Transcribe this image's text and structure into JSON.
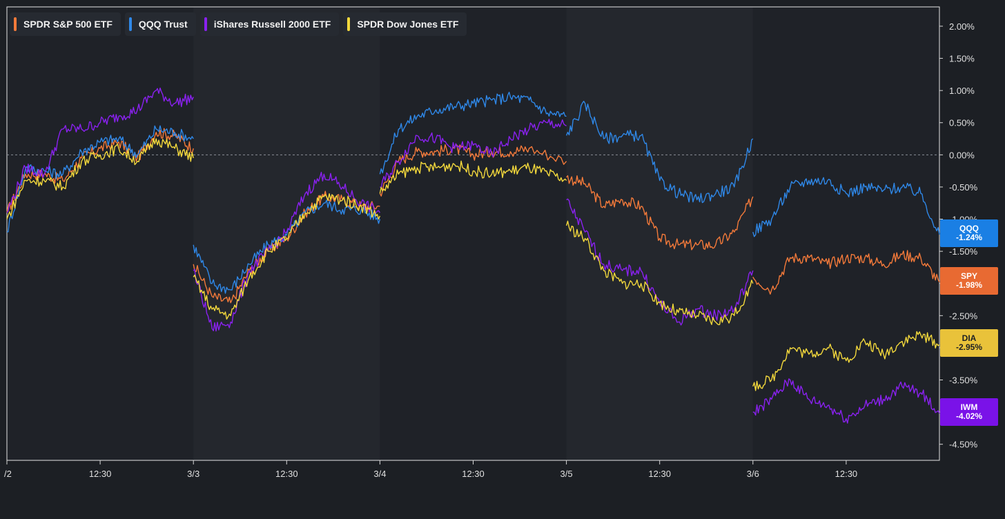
{
  "legend": [
    {
      "label": "SPDR S&P 500 ETF",
      "color": "#f47a3a"
    },
    {
      "label": "QQQ Trust",
      "color": "#2f88e8"
    },
    {
      "label": "iShares Russell 2000 ETF",
      "color": "#8a21f0"
    },
    {
      "label": "SPDR Dow Jones ETF",
      "color": "#f4d93c"
    }
  ],
  "tags": [
    {
      "ticker": "QQQ",
      "value": "-1.24%",
      "color": "#1a7fe4",
      "percent": -1.24
    },
    {
      "ticker": "SPY",
      "value": "-1.98%",
      "color": "#e86a32",
      "percent": -1.98
    },
    {
      "ticker": "DIA",
      "value": "-2.95%",
      "color": "#e9c23a",
      "percent": -2.95
    },
    {
      "ticker": "IWM",
      "value": "-4.02%",
      "color": "#7a12e8",
      "percent": -4.02
    }
  ],
  "chart_data": {
    "type": "line",
    "x_tick_labels": [
      "/2",
      "12:30",
      "3/3",
      "12:30",
      "3/4",
      "12:30",
      "3/5",
      "12:30",
      "3/6",
      "12:30"
    ],
    "y_tick_labels": [
      "2.00%",
      "1.50%",
      "1.00%",
      "0.50%",
      "0.00%",
      "-0.50%",
      "-1.00%",
      "-1.50%",
      "-2.00%",
      "-2.50%",
      "-3.00%",
      "-3.50%",
      "-4.00%",
      "-4.50%"
    ],
    "ylim": [
      -4.75,
      2.3
    ],
    "grid": false,
    "zero_line": true,
    "legend_position": "top-left",
    "x_range": [
      0,
      5.0
    ],
    "series": [
      {
        "name": "SPDR S&P 500 ETF",
        "color": "#f47a3a",
        "points": [
          [
            0.0,
            -0.9
          ],
          [
            0.1,
            -0.3
          ],
          [
            0.2,
            -0.3
          ],
          [
            0.3,
            -0.4
          ],
          [
            0.4,
            -0.05
          ],
          [
            0.5,
            0.1
          ],
          [
            0.6,
            0.2
          ],
          [
            0.7,
            -0.05
          ],
          [
            0.8,
            0.35
          ],
          [
            0.9,
            0.3
          ],
          [
            1.0,
            0.1
          ],
          [
            1.0,
            -1.7
          ],
          [
            1.1,
            -2.2
          ],
          [
            1.2,
            -2.3
          ],
          [
            1.3,
            -1.8
          ],
          [
            1.4,
            -1.5
          ],
          [
            1.5,
            -1.3
          ],
          [
            1.6,
            -0.9
          ],
          [
            1.7,
            -0.65
          ],
          [
            1.8,
            -0.7
          ],
          [
            1.9,
            -0.8
          ],
          [
            2.0,
            -0.8
          ],
          [
            2.0,
            -0.6
          ],
          [
            2.1,
            -0.1
          ],
          [
            2.2,
            0.05
          ],
          [
            2.3,
            0.05
          ],
          [
            2.4,
            0.1
          ],
          [
            2.5,
            0.0
          ],
          [
            2.6,
            0.05
          ],
          [
            2.7,
            0.05
          ],
          [
            2.8,
            0.1
          ],
          [
            3.0,
            -0.1
          ],
          [
            3.0,
            -0.35
          ],
          [
            3.1,
            -0.45
          ],
          [
            3.2,
            -0.8
          ],
          [
            3.3,
            -0.7
          ],
          [
            3.4,
            -0.8
          ],
          [
            3.5,
            -1.3
          ],
          [
            3.6,
            -1.4
          ],
          [
            3.7,
            -1.4
          ],
          [
            3.8,
            -1.4
          ],
          [
            3.9,
            -1.2
          ],
          [
            4.0,
            -0.65
          ],
          [
            4.0,
            -1.9
          ],
          [
            4.1,
            -2.1
          ],
          [
            4.2,
            -1.6
          ],
          [
            4.3,
            -1.6
          ],
          [
            4.4,
            -1.7
          ],
          [
            4.5,
            -1.6
          ],
          [
            4.6,
            -1.6
          ],
          [
            4.7,
            -1.7
          ],
          [
            4.8,
            -1.55
          ],
          [
            4.9,
            -1.6
          ],
          [
            5.0,
            -1.98
          ]
        ]
      },
      {
        "name": "QQQ Trust",
        "color": "#2f88e8",
        "points": [
          [
            0.0,
            -1.2
          ],
          [
            0.1,
            -0.2
          ],
          [
            0.2,
            -0.25
          ],
          [
            0.3,
            -0.3
          ],
          [
            0.4,
            0.05
          ],
          [
            0.5,
            0.2
          ],
          [
            0.6,
            0.25
          ],
          [
            0.7,
            0.0
          ],
          [
            0.8,
            0.4
          ],
          [
            0.9,
            0.35
          ],
          [
            1.0,
            0.25
          ],
          [
            1.0,
            -1.4
          ],
          [
            1.1,
            -2.0
          ],
          [
            1.2,
            -2.1
          ],
          [
            1.3,
            -1.7
          ],
          [
            1.4,
            -1.4
          ],
          [
            1.5,
            -1.25
          ],
          [
            1.6,
            -0.9
          ],
          [
            1.7,
            -0.75
          ],
          [
            1.8,
            -0.85
          ],
          [
            1.9,
            -0.85
          ],
          [
            2.0,
            -1.0
          ],
          [
            2.0,
            -0.3
          ],
          [
            2.1,
            0.4
          ],
          [
            2.2,
            0.6
          ],
          [
            2.3,
            0.7
          ],
          [
            2.4,
            0.75
          ],
          [
            2.5,
            0.8
          ],
          [
            2.6,
            0.85
          ],
          [
            2.7,
            0.9
          ],
          [
            2.8,
            0.85
          ],
          [
            2.9,
            0.65
          ],
          [
            3.0,
            0.6
          ],
          [
            3.0,
            0.3
          ],
          [
            3.1,
            0.8
          ],
          [
            3.2,
            0.25
          ],
          [
            3.3,
            0.3
          ],
          [
            3.4,
            0.3
          ],
          [
            3.5,
            -0.4
          ],
          [
            3.6,
            -0.6
          ],
          [
            3.7,
            -0.7
          ],
          [
            3.8,
            -0.6
          ],
          [
            3.9,
            -0.5
          ],
          [
            4.0,
            0.25
          ],
          [
            4.0,
            -1.2
          ],
          [
            4.1,
            -1.0
          ],
          [
            4.2,
            -0.5
          ],
          [
            4.3,
            -0.4
          ],
          [
            4.4,
            -0.4
          ],
          [
            4.5,
            -0.6
          ],
          [
            4.6,
            -0.5
          ],
          [
            4.7,
            -0.55
          ],
          [
            4.8,
            -0.5
          ],
          [
            4.9,
            -0.6
          ],
          [
            5.0,
            -1.24
          ]
        ]
      },
      {
        "name": "iShares Russell 2000 ETF",
        "color": "#8a21f0",
        "points": [
          [
            0.0,
            -0.9
          ],
          [
            0.1,
            -0.2
          ],
          [
            0.2,
            -0.3
          ],
          [
            0.3,
            0.4
          ],
          [
            0.4,
            0.4
          ],
          [
            0.5,
            0.5
          ],
          [
            0.6,
            0.6
          ],
          [
            0.7,
            0.7
          ],
          [
            0.8,
            1.0
          ],
          [
            0.9,
            0.8
          ],
          [
            1.0,
            0.9
          ],
          [
            1.0,
            -1.8
          ],
          [
            1.1,
            -2.7
          ],
          [
            1.2,
            -2.6
          ],
          [
            1.3,
            -1.8
          ],
          [
            1.4,
            -1.5
          ],
          [
            1.5,
            -1.2
          ],
          [
            1.6,
            -0.6
          ],
          [
            1.7,
            -0.3
          ],
          [
            1.8,
            -0.5
          ],
          [
            1.9,
            -0.75
          ],
          [
            2.0,
            -0.9
          ],
          [
            2.0,
            -0.5
          ],
          [
            2.1,
            -0.1
          ],
          [
            2.2,
            0.3
          ],
          [
            2.3,
            0.25
          ],
          [
            2.4,
            0.1
          ],
          [
            2.5,
            0.15
          ],
          [
            2.6,
            0.0
          ],
          [
            2.7,
            0.25
          ],
          [
            2.8,
            0.4
          ],
          [
            2.9,
            0.5
          ],
          [
            3.0,
            0.45
          ],
          [
            3.0,
            -0.7
          ],
          [
            3.1,
            -1.2
          ],
          [
            3.2,
            -1.7
          ],
          [
            3.3,
            -1.8
          ],
          [
            3.4,
            -1.8
          ],
          [
            3.5,
            -2.3
          ],
          [
            3.6,
            -2.6
          ],
          [
            3.7,
            -2.4
          ],
          [
            3.8,
            -2.5
          ],
          [
            3.9,
            -2.4
          ],
          [
            4.0,
            -1.8
          ],
          [
            4.0,
            -4.0
          ],
          [
            4.1,
            -3.8
          ],
          [
            4.2,
            -3.5
          ],
          [
            4.3,
            -3.8
          ],
          [
            4.4,
            -3.9
          ],
          [
            4.5,
            -4.1
          ],
          [
            4.6,
            -3.9
          ],
          [
            4.7,
            -3.8
          ],
          [
            4.8,
            -3.6
          ],
          [
            4.9,
            -3.7
          ],
          [
            5.0,
            -4.02
          ]
        ]
      },
      {
        "name": "SPDR Dow Jones ETF",
        "color": "#f4d93c",
        "points": [
          [
            0.0,
            -1.0
          ],
          [
            0.1,
            -0.4
          ],
          [
            0.2,
            -0.4
          ],
          [
            0.3,
            -0.5
          ],
          [
            0.4,
            -0.1
          ],
          [
            0.5,
            0.0
          ],
          [
            0.6,
            0.1
          ],
          [
            0.7,
            -0.1
          ],
          [
            0.8,
            0.25
          ],
          [
            0.9,
            0.1
          ],
          [
            1.0,
            -0.05
          ],
          [
            1.0,
            -1.9
          ],
          [
            1.1,
            -2.4
          ],
          [
            1.2,
            -2.5
          ],
          [
            1.3,
            -1.9
          ],
          [
            1.4,
            -1.5
          ],
          [
            1.5,
            -1.3
          ],
          [
            1.6,
            -0.9
          ],
          [
            1.7,
            -0.65
          ],
          [
            1.8,
            -0.7
          ],
          [
            1.9,
            -0.8
          ],
          [
            2.0,
            -0.95
          ],
          [
            2.0,
            -0.6
          ],
          [
            2.1,
            -0.3
          ],
          [
            2.2,
            -0.2
          ],
          [
            2.3,
            -0.2
          ],
          [
            2.4,
            -0.15
          ],
          [
            2.5,
            -0.25
          ],
          [
            2.6,
            -0.3
          ],
          [
            2.7,
            -0.25
          ],
          [
            2.8,
            -0.2
          ],
          [
            2.9,
            -0.3
          ],
          [
            3.0,
            -0.4
          ],
          [
            3.0,
            -1.1
          ],
          [
            3.1,
            -1.3
          ],
          [
            3.2,
            -1.8
          ],
          [
            3.3,
            -2.0
          ],
          [
            3.4,
            -2.0
          ],
          [
            3.5,
            -2.3
          ],
          [
            3.6,
            -2.45
          ],
          [
            3.7,
            -2.5
          ],
          [
            3.8,
            -2.6
          ],
          [
            3.9,
            -2.5
          ],
          [
            4.0,
            -2.0
          ],
          [
            4.0,
            -3.6
          ],
          [
            4.1,
            -3.5
          ],
          [
            4.2,
            -3.0
          ],
          [
            4.3,
            -3.1
          ],
          [
            4.4,
            -3.0
          ],
          [
            4.5,
            -3.2
          ],
          [
            4.6,
            -2.9
          ],
          [
            4.7,
            -3.1
          ],
          [
            4.8,
            -2.9
          ],
          [
            4.9,
            -2.8
          ],
          [
            5.0,
            -2.95
          ]
        ]
      }
    ]
  }
}
